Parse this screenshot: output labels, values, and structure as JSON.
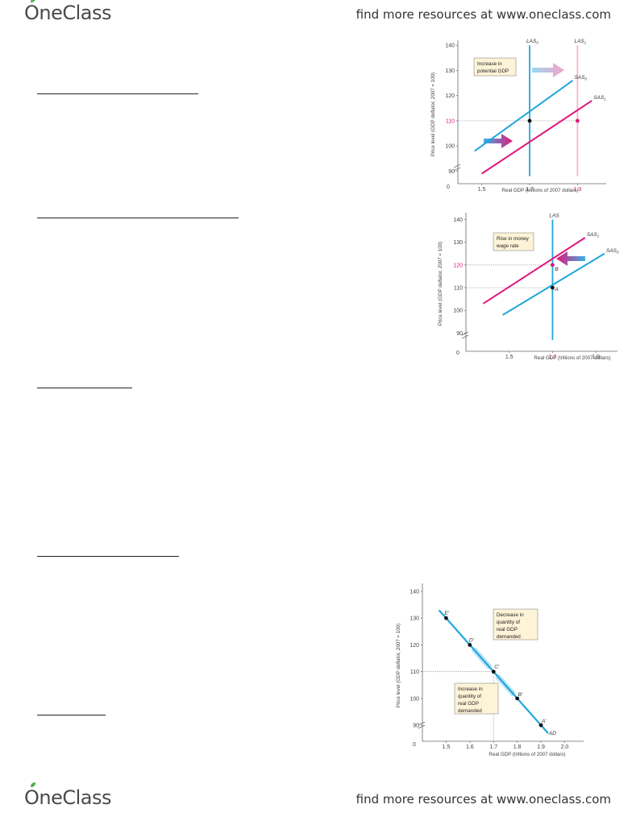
{
  "header": {
    "logo_text": "OneClass",
    "resources_text": "find more resources at www.oneclass.com"
  },
  "footer": {
    "logo_text": "OneClass",
    "resources_text": "find more resources at www.oneclass.com"
  },
  "colors": {
    "cyan": "#1ea7dc",
    "magenta": "#e0187a",
    "logo_green": "#4caf50",
    "box_fill": "#fdf3d7"
  },
  "chart_data": [
    {
      "type": "line",
      "xlabel": "Real GDP (trillions of 2007 dollars)",
      "ylabel": "Price level (GDP deflator, 2007 = 100)",
      "origin_label": "0",
      "x_ticks": [
        "1.5",
        "1.7",
        "1.9"
      ],
      "y_ticks": [
        "90",
        "100",
        "110",
        "120",
        "130",
        "140"
      ],
      "highlight_ticks": {
        "y": "110",
        "x": "1.9"
      },
      "annotation": [
        "Increase in",
        "potential GDP"
      ],
      "series": [
        {
          "name": "LAS0",
          "label_main": "LAS",
          "label_sub": "0",
          "x": [
            1.7,
            1.7
          ],
          "y": [
            140,
            88
          ]
        },
        {
          "name": "LAS1",
          "label_main": "LAS",
          "label_sub": "1",
          "x": [
            1.9,
            1.9
          ],
          "y": [
            140,
            88
          ]
        },
        {
          "name": "SAS0",
          "label_main": "SAS",
          "label_sub": "0",
          "x": [
            1.47,
            1.88
          ],
          "y": [
            98,
            126
          ]
        },
        {
          "name": "SAS1",
          "label_main": "SAS",
          "label_sub": "1",
          "x": [
            1.5,
            1.96
          ],
          "y": [
            89,
            118
          ]
        }
      ],
      "points": [
        {
          "x": 1.7,
          "y": 110
        },
        {
          "x": 1.9,
          "y": 110
        }
      ]
    },
    {
      "type": "line",
      "xlabel": "Real GDP (trillions of 2007 dollars)",
      "ylabel": "Price level (GDP deflator, 2007 = 100)",
      "origin_label": "0",
      "x_ticks": [
        "1.5",
        "1.7",
        "1.9"
      ],
      "y_ticks": [
        "90",
        "100",
        "110",
        "120",
        "130",
        "140"
      ],
      "highlight_ticks": {
        "y": "120",
        "x": "1.7"
      },
      "annotation": [
        "Rise in money",
        "wage rate"
      ],
      "series": [
        {
          "name": "LAS",
          "label_main": "LAS",
          "label_sub": "",
          "x": [
            1.7,
            1.7
          ],
          "y": [
            140,
            87
          ]
        },
        {
          "name": "SAS2",
          "label_main": "SAS",
          "label_sub": "2",
          "x": [
            1.38,
            1.85
          ],
          "y": [
            103,
            132
          ]
        },
        {
          "name": "SAS0",
          "label_main": "SAS",
          "label_sub": "0",
          "x": [
            1.47,
            1.94
          ],
          "y": [
            98,
            125
          ]
        }
      ],
      "points": [
        {
          "label": "A",
          "x": 1.7,
          "y": 110
        },
        {
          "label": "B",
          "x": 1.7,
          "y": 120
        }
      ]
    },
    {
      "type": "line",
      "xlabel": "Real GDP (trillions of 2007 dollars)",
      "ylabel": "Price level (GDP deflator, 2007 = 100)",
      "origin_label": "0",
      "x_ticks": [
        "1.5",
        "1.6",
        "1.7",
        "1.8",
        "1.9",
        "2.0"
      ],
      "y_ticks": [
        "90",
        "100",
        "110",
        "120",
        "130",
        "140"
      ],
      "annotation_upper": [
        "Decrease in",
        "quantity of",
        "real GDP",
        "demanded"
      ],
      "annotation_lower": [
        "Increase in",
        "quantity of",
        "real GDP",
        "demanded"
      ],
      "series": [
        {
          "name": "AD",
          "label_main": "AD",
          "label_sub": "",
          "x": [
            1.47,
            1.93
          ],
          "y": [
            133,
            87
          ]
        }
      ],
      "points": [
        {
          "label": "E'",
          "x": 1.5,
          "y": 130
        },
        {
          "label": "D'",
          "x": 1.6,
          "y": 120
        },
        {
          "label": "C'",
          "x": 1.7,
          "y": 110
        },
        {
          "label": "B'",
          "x": 1.8,
          "y": 100
        },
        {
          "label": "A'",
          "x": 1.9,
          "y": 90
        }
      ]
    }
  ]
}
